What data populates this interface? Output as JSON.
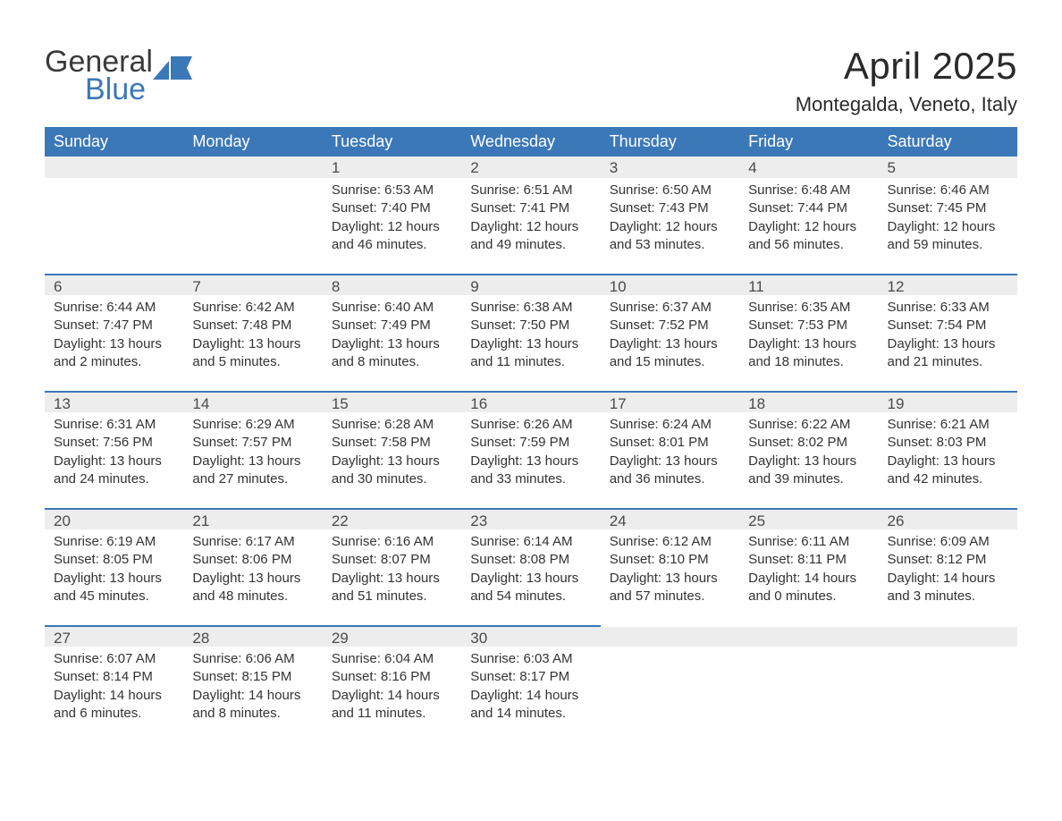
{
  "logo": {
    "word1": "General",
    "word2": "Blue",
    "accent_color": "#3b78b8",
    "text_color": "#3a3a3a"
  },
  "title": "April 2025",
  "location": "Montegalda, Veneto, Italy",
  "colors": {
    "header_bg": "#3b78b8",
    "header_text": "#ffffff",
    "daynum_bg": "#ededed",
    "daynum_border": "#3b78b8",
    "body_text": "#333333",
    "background": "#ffffff"
  },
  "font": {
    "family": "Arial",
    "th_size_pt": 14,
    "body_size_pt": 11,
    "title_size_pt": 32,
    "location_size_pt": 17
  },
  "day_headers": [
    "Sunday",
    "Monday",
    "Tuesday",
    "Wednesday",
    "Thursday",
    "Friday",
    "Saturday"
  ],
  "weeks": [
    [
      null,
      null,
      {
        "n": "1",
        "sunrise": "Sunrise: 6:53 AM",
        "sunset": "Sunset: 7:40 PM",
        "daylight": "Daylight: 12 hours and 46 minutes."
      },
      {
        "n": "2",
        "sunrise": "Sunrise: 6:51 AM",
        "sunset": "Sunset: 7:41 PM",
        "daylight": "Daylight: 12 hours and 49 minutes."
      },
      {
        "n": "3",
        "sunrise": "Sunrise: 6:50 AM",
        "sunset": "Sunset: 7:43 PM",
        "daylight": "Daylight: 12 hours and 53 minutes."
      },
      {
        "n": "4",
        "sunrise": "Sunrise: 6:48 AM",
        "sunset": "Sunset: 7:44 PM",
        "daylight": "Daylight: 12 hours and 56 minutes."
      },
      {
        "n": "5",
        "sunrise": "Sunrise: 6:46 AM",
        "sunset": "Sunset: 7:45 PM",
        "daylight": "Daylight: 12 hours and 59 minutes."
      }
    ],
    [
      {
        "n": "6",
        "sunrise": "Sunrise: 6:44 AM",
        "sunset": "Sunset: 7:47 PM",
        "daylight": "Daylight: 13 hours and 2 minutes."
      },
      {
        "n": "7",
        "sunrise": "Sunrise: 6:42 AM",
        "sunset": "Sunset: 7:48 PM",
        "daylight": "Daylight: 13 hours and 5 minutes."
      },
      {
        "n": "8",
        "sunrise": "Sunrise: 6:40 AM",
        "sunset": "Sunset: 7:49 PM",
        "daylight": "Daylight: 13 hours and 8 minutes."
      },
      {
        "n": "9",
        "sunrise": "Sunrise: 6:38 AM",
        "sunset": "Sunset: 7:50 PM",
        "daylight": "Daylight: 13 hours and 11 minutes."
      },
      {
        "n": "10",
        "sunrise": "Sunrise: 6:37 AM",
        "sunset": "Sunset: 7:52 PM",
        "daylight": "Daylight: 13 hours and 15 minutes."
      },
      {
        "n": "11",
        "sunrise": "Sunrise: 6:35 AM",
        "sunset": "Sunset: 7:53 PM",
        "daylight": "Daylight: 13 hours and 18 minutes."
      },
      {
        "n": "12",
        "sunrise": "Sunrise: 6:33 AM",
        "sunset": "Sunset: 7:54 PM",
        "daylight": "Daylight: 13 hours and 21 minutes."
      }
    ],
    [
      {
        "n": "13",
        "sunrise": "Sunrise: 6:31 AM",
        "sunset": "Sunset: 7:56 PM",
        "daylight": "Daylight: 13 hours and 24 minutes."
      },
      {
        "n": "14",
        "sunrise": "Sunrise: 6:29 AM",
        "sunset": "Sunset: 7:57 PM",
        "daylight": "Daylight: 13 hours and 27 minutes."
      },
      {
        "n": "15",
        "sunrise": "Sunrise: 6:28 AM",
        "sunset": "Sunset: 7:58 PM",
        "daylight": "Daylight: 13 hours and 30 minutes."
      },
      {
        "n": "16",
        "sunrise": "Sunrise: 6:26 AM",
        "sunset": "Sunset: 7:59 PM",
        "daylight": "Daylight: 13 hours and 33 minutes."
      },
      {
        "n": "17",
        "sunrise": "Sunrise: 6:24 AM",
        "sunset": "Sunset: 8:01 PM",
        "daylight": "Daylight: 13 hours and 36 minutes."
      },
      {
        "n": "18",
        "sunrise": "Sunrise: 6:22 AM",
        "sunset": "Sunset: 8:02 PM",
        "daylight": "Daylight: 13 hours and 39 minutes."
      },
      {
        "n": "19",
        "sunrise": "Sunrise: 6:21 AM",
        "sunset": "Sunset: 8:03 PM",
        "daylight": "Daylight: 13 hours and 42 minutes."
      }
    ],
    [
      {
        "n": "20",
        "sunrise": "Sunrise: 6:19 AM",
        "sunset": "Sunset: 8:05 PM",
        "daylight": "Daylight: 13 hours and 45 minutes."
      },
      {
        "n": "21",
        "sunrise": "Sunrise: 6:17 AM",
        "sunset": "Sunset: 8:06 PM",
        "daylight": "Daylight: 13 hours and 48 minutes."
      },
      {
        "n": "22",
        "sunrise": "Sunrise: 6:16 AM",
        "sunset": "Sunset: 8:07 PM",
        "daylight": "Daylight: 13 hours and 51 minutes."
      },
      {
        "n": "23",
        "sunrise": "Sunrise: 6:14 AM",
        "sunset": "Sunset: 8:08 PM",
        "daylight": "Daylight: 13 hours and 54 minutes."
      },
      {
        "n": "24",
        "sunrise": "Sunrise: 6:12 AM",
        "sunset": "Sunset: 8:10 PM",
        "daylight": "Daylight: 13 hours and 57 minutes."
      },
      {
        "n": "25",
        "sunrise": "Sunrise: 6:11 AM",
        "sunset": "Sunset: 8:11 PM",
        "daylight": "Daylight: 14 hours and 0 minutes."
      },
      {
        "n": "26",
        "sunrise": "Sunrise: 6:09 AM",
        "sunset": "Sunset: 8:12 PM",
        "daylight": "Daylight: 14 hours and 3 minutes."
      }
    ],
    [
      {
        "n": "27",
        "sunrise": "Sunrise: 6:07 AM",
        "sunset": "Sunset: 8:14 PM",
        "daylight": "Daylight: 14 hours and 6 minutes."
      },
      {
        "n": "28",
        "sunrise": "Sunrise: 6:06 AM",
        "sunset": "Sunset: 8:15 PM",
        "daylight": "Daylight: 14 hours and 8 minutes."
      },
      {
        "n": "29",
        "sunrise": "Sunrise: 6:04 AM",
        "sunset": "Sunset: 8:16 PM",
        "daylight": "Daylight: 14 hours and 11 minutes."
      },
      {
        "n": "30",
        "sunrise": "Sunrise: 6:03 AM",
        "sunset": "Sunset: 8:17 PM",
        "daylight": "Daylight: 14 hours and 14 minutes."
      },
      null,
      null,
      null
    ]
  ]
}
